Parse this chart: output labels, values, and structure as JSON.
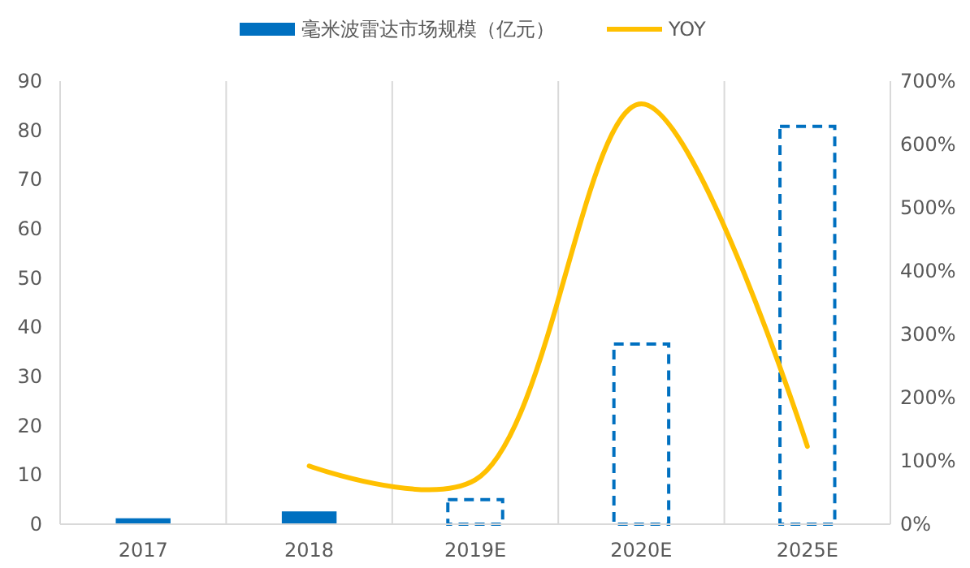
{
  "chart_data": {
    "type": "bar",
    "categories": [
      "2017",
      "2018",
      "2019E",
      "2020E",
      "2025E"
    ],
    "series": [
      {
        "name": "毫米波雷达市场规模（亿元）",
        "color": "#0070c0",
        "values": [
          1.2,
          2.6,
          null,
          null,
          null
        ]
      },
      {
        "color": "#0070c0",
        "line_style": "dashed",
        "values": [
          null,
          null,
          5,
          36.6,
          80.8
        ]
      },
      {
        "name": "YOY",
        "type": "line",
        "axis": "y2",
        "color": "#ffc000",
        "values": [
          null,
          92,
          70,
          664,
          123
        ]
      }
    ],
    "ylim": [
      0,
      90
    ],
    "yticks": [
      0,
      10,
      20,
      30,
      40,
      50,
      60,
      70,
      80,
      90
    ],
    "y2lim": [
      0,
      700
    ],
    "y2ticks": [
      {
        "value": 0,
        "label": "0%"
      },
      {
        "value": 100,
        "label": "100%"
      },
      {
        "value": 200,
        "label": "200%"
      },
      {
        "value": 300,
        "label": "300%"
      },
      {
        "value": 400,
        "label": "400%"
      },
      {
        "value": 500,
        "label": "500%"
      },
      {
        "value": 600,
        "label": "600%"
      },
      {
        "value": 700,
        "label": "700%"
      }
    ],
    "grid": "x",
    "legend": "top"
  }
}
